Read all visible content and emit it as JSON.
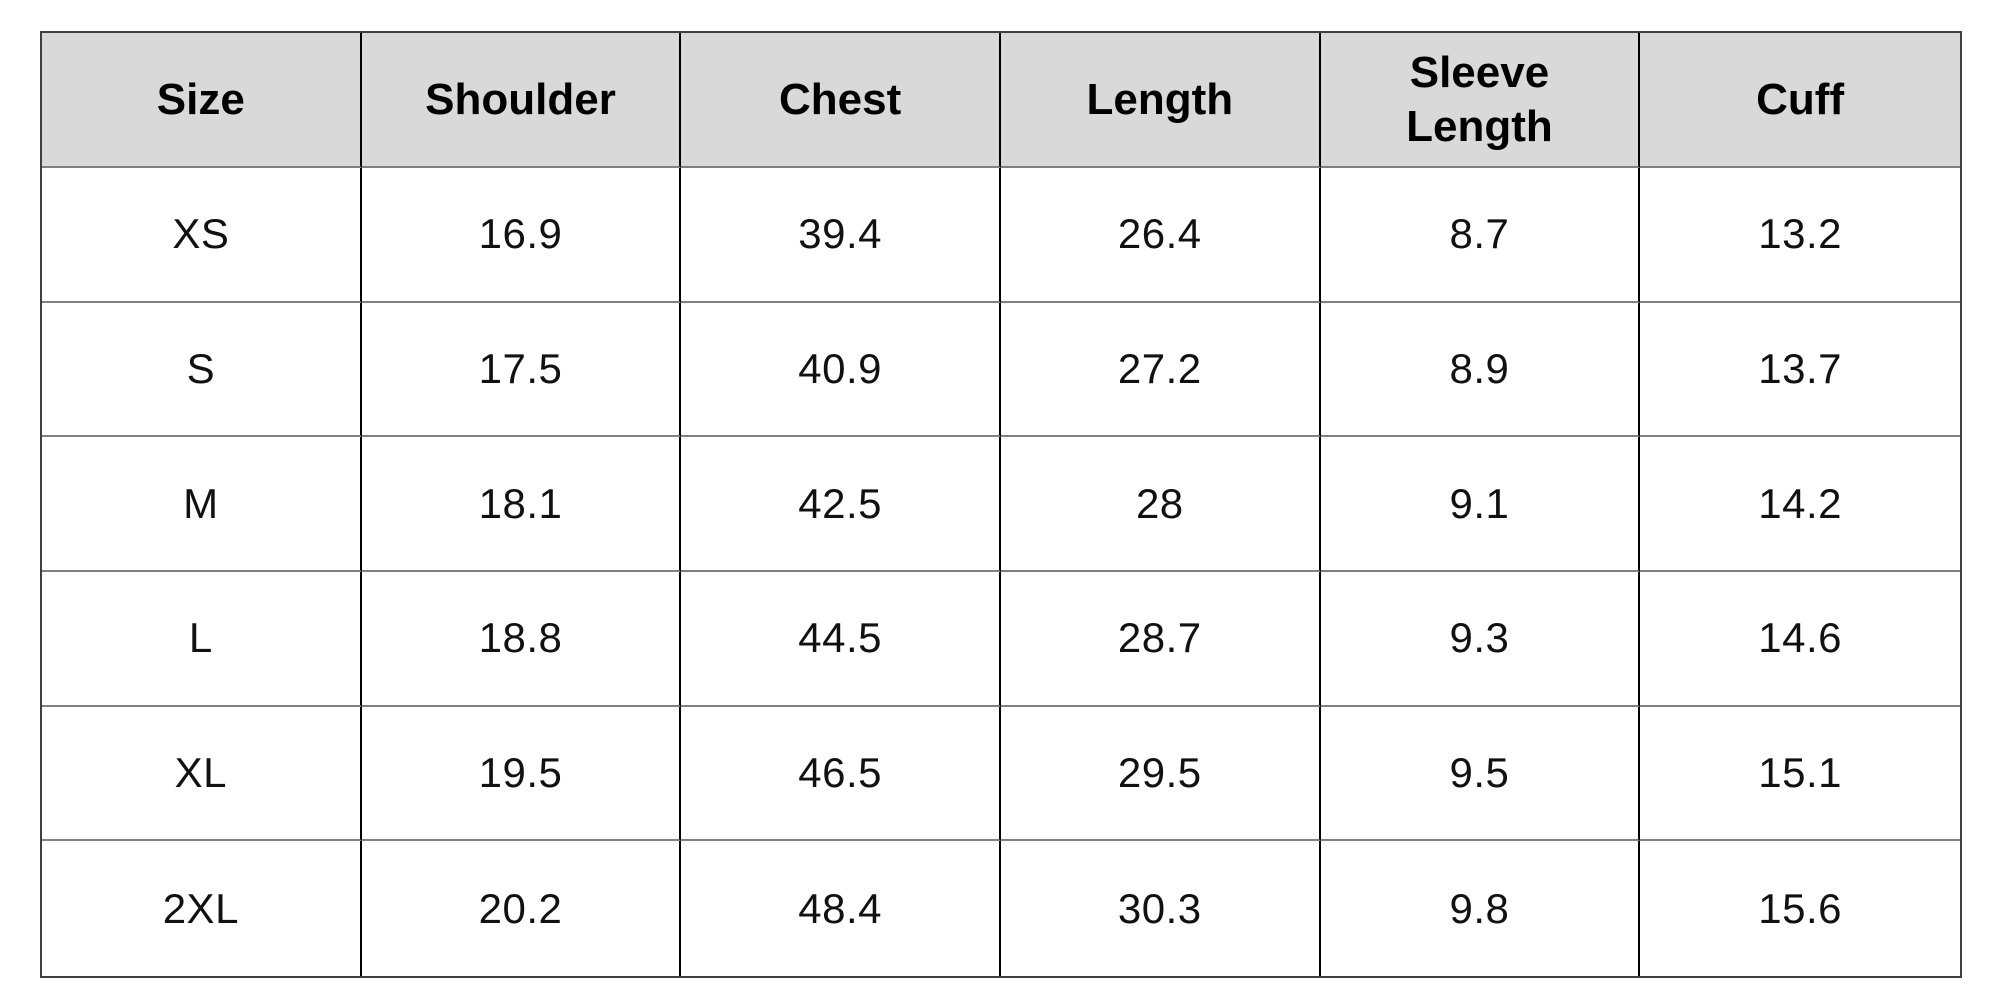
{
  "table": {
    "name": "garment-size-chart",
    "columns": [
      "Size",
      "Shoulder",
      "Chest",
      "Length",
      "Sleeve Length",
      "Cuff"
    ],
    "rows": [
      [
        "XS",
        "16.9",
        "39.4",
        "26.4",
        "8.7",
        "13.2"
      ],
      [
        "S",
        "17.5",
        "40.9",
        "27.2",
        "8.9",
        "13.7"
      ],
      [
        "M",
        "18.1",
        "42.5",
        "28",
        "9.1",
        "14.2"
      ],
      [
        "L",
        "18.8",
        "44.5",
        "28.7",
        "9.3",
        "14.6"
      ],
      [
        "XL",
        "19.5",
        "46.5",
        "29.5",
        "9.5",
        "15.1"
      ],
      [
        "2XL",
        "20.2",
        "48.4",
        "30.3",
        "9.8",
        "15.6"
      ]
    ]
  },
  "colors": {
    "header_bg": "#d9d9d9",
    "row_bg": "#ffffff",
    "border_outer": "#3f3f3f",
    "border_vertical": "#000000",
    "border_horizontal": "#808080",
    "header_text": "#000000",
    "cell_text": "#111111"
  },
  "chart_data": {
    "type": "table",
    "title": "",
    "columns": [
      "Size",
      "Shoulder",
      "Chest",
      "Length",
      "Sleeve Length",
      "Cuff"
    ],
    "rows": [
      {
        "size": "XS",
        "shoulder": 16.9,
        "chest": 39.4,
        "length": 26.4,
        "sleeve_length": 8.7,
        "cuff": 13.2
      },
      {
        "size": "S",
        "shoulder": 17.5,
        "chest": 40.9,
        "length": 27.2,
        "sleeve_length": 8.9,
        "cuff": 13.7
      },
      {
        "size": "M",
        "shoulder": 18.1,
        "chest": 42.5,
        "length": 28,
        "sleeve_length": 9.1,
        "cuff": 14.2
      },
      {
        "size": "L",
        "shoulder": 18.8,
        "chest": 44.5,
        "length": 28.7,
        "sleeve_length": 9.3,
        "cuff": 14.6
      },
      {
        "size": "XL",
        "shoulder": 19.5,
        "chest": 46.5,
        "length": 29.5,
        "sleeve_length": 9.5,
        "cuff": 15.1
      },
      {
        "size": "2XL",
        "shoulder": 20.2,
        "chest": 48.4,
        "length": 30.3,
        "sleeve_length": 9.8,
        "cuff": 15.6
      }
    ]
  }
}
